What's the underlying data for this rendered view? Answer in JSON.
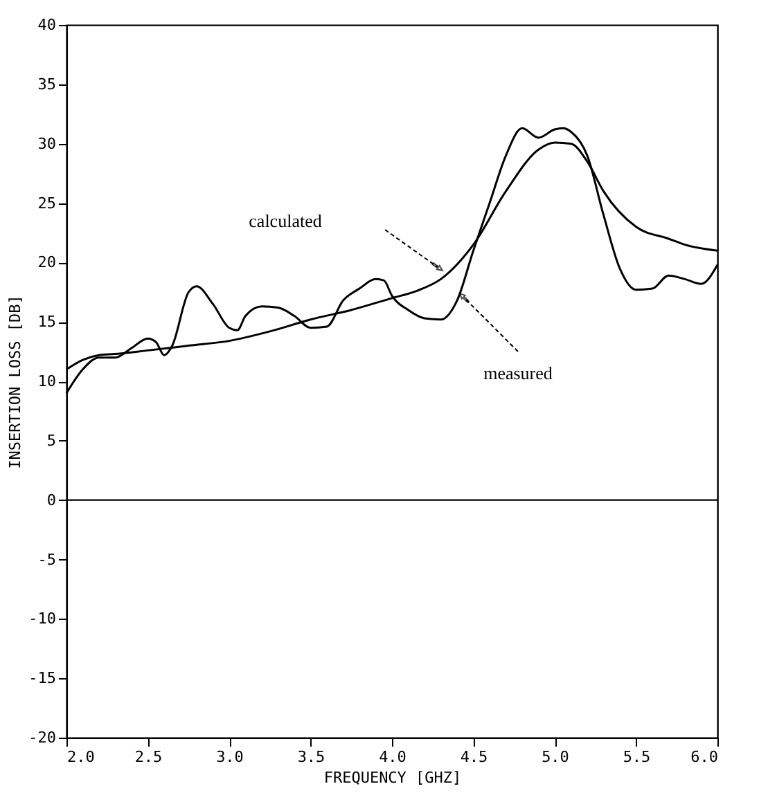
{
  "chart_data": {
    "type": "line",
    "xlabel": "FREQUENCY [GHZ]",
    "ylabel": "INSERTION LOSS [DB]",
    "xlim": [
      2.0,
      6.0
    ],
    "xticks": [
      {
        "value": 2.0,
        "label": "2.0"
      },
      2.5,
      {
        "value": 3.0,
        "label": "3.0"
      },
      3.5,
      {
        "value": 4.0,
        "label": "4.0"
      },
      4.5,
      {
        "value": 5.0,
        "label": "5.0"
      },
      5.5,
      {
        "value": 6.0,
        "label": "6.0"
      }
    ],
    "ylim": [
      -20,
      40
    ],
    "yticks": [
      -20,
      -15,
      -10,
      -5,
      0,
      5,
      10,
      15,
      20,
      25,
      30,
      35,
      40
    ],
    "grid": false,
    "line_style": "solid",
    "series": [
      {
        "color": "#000000",
        "x": [
          2.0,
          2.1,
          2.2,
          2.3,
          2.4,
          2.5,
          2.55,
          2.6,
          2.65,
          2.75,
          2.8,
          2.9,
          3.0,
          3.05,
          3.1,
          3.2,
          3.3,
          3.4,
          3.5,
          3.6,
          3.7,
          3.8,
          3.9,
          3.95,
          4.0,
          4.1,
          4.2,
          4.3,
          4.4,
          4.5,
          4.6,
          4.7,
          4.8,
          4.9,
          5.0,
          5.05,
          5.1,
          5.2,
          5.3,
          5.4,
          5.5,
          5.6,
          5.7,
          5.8,
          5.9,
          6.0
        ],
        "values": [
          9,
          11,
          12,
          12,
          12.8,
          13.6,
          13.3,
          12.2,
          13,
          17.5,
          18,
          16.5,
          14.5,
          14.3,
          15.5,
          16.3,
          16.2,
          15.5,
          14.5,
          14.6,
          16.8,
          17.8,
          18.6,
          18.5,
          17.2,
          16,
          15.3,
          15.2,
          16.8,
          21,
          25,
          29,
          31.3,
          30.5,
          31.2,
          31.3,
          31,
          29,
          24,
          19.5,
          17.7,
          17.8,
          18.9,
          18.6,
          18.2,
          19.8
        ]
      },
      {
        "color": "#000000",
        "x": [
          2.0,
          2.1,
          2.2,
          2.3,
          2.5,
          2.75,
          3.0,
          3.25,
          3.5,
          3.75,
          4.0,
          4.15,
          4.3,
          4.5,
          4.7,
          4.9,
          5.0,
          5.1,
          5.2,
          5.3,
          5.5,
          5.7,
          5.8,
          6.0
        ],
        "values": [
          11,
          11.8,
          12.2,
          12.3,
          12.6,
          13,
          13.4,
          14.2,
          15.2,
          16,
          17,
          17.6,
          18.6,
          21.5,
          26,
          29.5,
          30.1,
          30,
          28.5,
          26,
          23,
          22,
          21.5,
          21
        ]
      }
    ],
    "ref_lines": [
      {
        "axis": "y",
        "value": 0,
        "color": "#000000",
        "line_style": "solid"
      }
    ],
    "annotations": [
      "calculated",
      "measured"
    ]
  }
}
